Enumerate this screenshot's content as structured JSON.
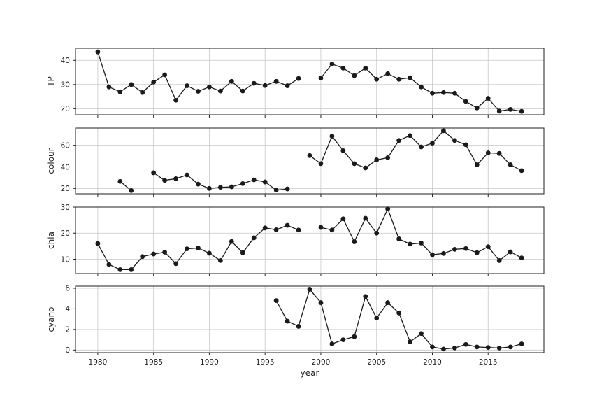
{
  "chart_data": {
    "type": "line",
    "xlabel": "year",
    "xlim": [
      1978,
      2020
    ],
    "x_ticks": [
      1980,
      1985,
      1990,
      1995,
      2000,
      2005,
      2010,
      2015
    ],
    "line_color": "#1a1a1a",
    "grid": true,
    "panels": [
      {
        "ylabel": "TP",
        "ylim": [
          17.5,
          45
        ],
        "y_ticks": [
          20,
          30,
          40
        ],
        "segments": [
          {
            "x": [
              1980,
              1981,
              1982,
              1983,
              1984,
              1985,
              1986,
              1987,
              1988,
              1989,
              1990,
              1991,
              1992,
              1993,
              1994,
              1995,
              1996,
              1997,
              1998
            ],
            "y": [
              43.5,
              29,
              27,
              30,
              26.7,
              31,
              34,
              23.5,
              29.5,
              27.2,
              29,
              27.3,
              31.3,
              27.3,
              30.5,
              29.6,
              31.3,
              29.5,
              32.5
            ]
          },
          {
            "x": [
              2000,
              2001,
              2002,
              2003,
              2004,
              2005,
              2006,
              2007,
              2008,
              2009,
              2010,
              2011,
              2012,
              2013,
              2014,
              2015,
              2016,
              2017,
              2018
            ],
            "y": [
              32.7,
              38.5,
              36.8,
              33.7,
              36.8,
              32.2,
              34.5,
              32.2,
              32.8,
              29,
              26.4,
              26.7,
              26.4,
              23,
              20.3,
              24.3,
              19,
              19.7,
              18.9
            ]
          }
        ]
      },
      {
        "ylabel": "colour",
        "ylim": [
          15,
          76
        ],
        "y_ticks": [
          20,
          40,
          60
        ],
        "segments": [
          {
            "x": [
              1982,
              1983
            ],
            "y": [
              26.5,
              18
            ]
          },
          {
            "x": [
              1985,
              1986,
              1987,
              1988,
              1989,
              1990,
              1991,
              1992,
              1993,
              1994,
              1995,
              1996,
              1997
            ],
            "y": [
              34.5,
              27.5,
              29,
              32.5,
              24,
              20,
              21,
              21.5,
              24.5,
              28,
              26,
              18.5,
              19.5
            ]
          },
          {
            "x": [
              1999,
              2000,
              2001,
              2002,
              2003,
              2004,
              2005,
              2006,
              2007,
              2008,
              2009,
              2010,
              2011,
              2012,
              2013,
              2014,
              2015,
              2016,
              2017,
              2018
            ],
            "y": [
              50.5,
              43,
              68.5,
              55,
              43,
              39,
              46.5,
              48.5,
              64.5,
              69,
              58.5,
              62,
              73.5,
              64.5,
              60.5,
              42,
              53,
              52.5,
              42,
              36.5
            ]
          }
        ]
      },
      {
        "ylabel": "chla",
        "ylim": [
          4.5,
          30
        ],
        "y_ticks": [
          10,
          20,
          30
        ],
        "segments": [
          {
            "x": [
              1980,
              1981,
              1982,
              1983,
              1984,
              1985,
              1986,
              1987,
              1988,
              1989,
              1990,
              1991,
              1992,
              1993,
              1994,
              1995,
              1996,
              1997,
              1998
            ],
            "y": [
              16,
              8,
              6,
              6,
              11,
              12,
              12.7,
              8.3,
              14,
              14.3,
              12.3,
              9.5,
              16.8,
              12.5,
              18.2,
              22,
              21.3,
              23,
              21.2
            ]
          },
          {
            "x": [
              2000,
              2001,
              2002,
              2003,
              2004,
              2005,
              2006,
              2007,
              2008,
              2009,
              2010,
              2011,
              2012,
              2013,
              2014,
              2015,
              2016,
              2017,
              2018
            ],
            "y": [
              22.2,
              21.2,
              25.5,
              16.7,
              25.7,
              20,
              29.3,
              17.8,
              15.8,
              16.2,
              11.7,
              12.2,
              13.8,
              14.1,
              12.5,
              14.8,
              9.5,
              12.8,
              10.5
            ]
          }
        ]
      },
      {
        "ylabel": "cyano",
        "ylim": [
          -0.25,
          6.2
        ],
        "y_ticks": [
          0,
          2,
          4,
          6
        ],
        "segments": [
          {
            "x": [
              1996,
              1997,
              1998,
              1999,
              2000,
              2001,
              2002,
              2003,
              2004,
              2005,
              2006,
              2007,
              2008,
              2009,
              2010,
              2011,
              2012,
              2013,
              2014,
              2015,
              2016,
              2017,
              2018
            ],
            "y": [
              4.8,
              2.8,
              2.3,
              5.9,
              4.6,
              0.6,
              1,
              1.3,
              5.2,
              3.1,
              4.6,
              3.6,
              0.8,
              1.6,
              0.3,
              0.1,
              0.2,
              0.55,
              0.3,
              0.25,
              0.2,
              0.3,
              0.6
            ]
          }
        ]
      }
    ]
  }
}
